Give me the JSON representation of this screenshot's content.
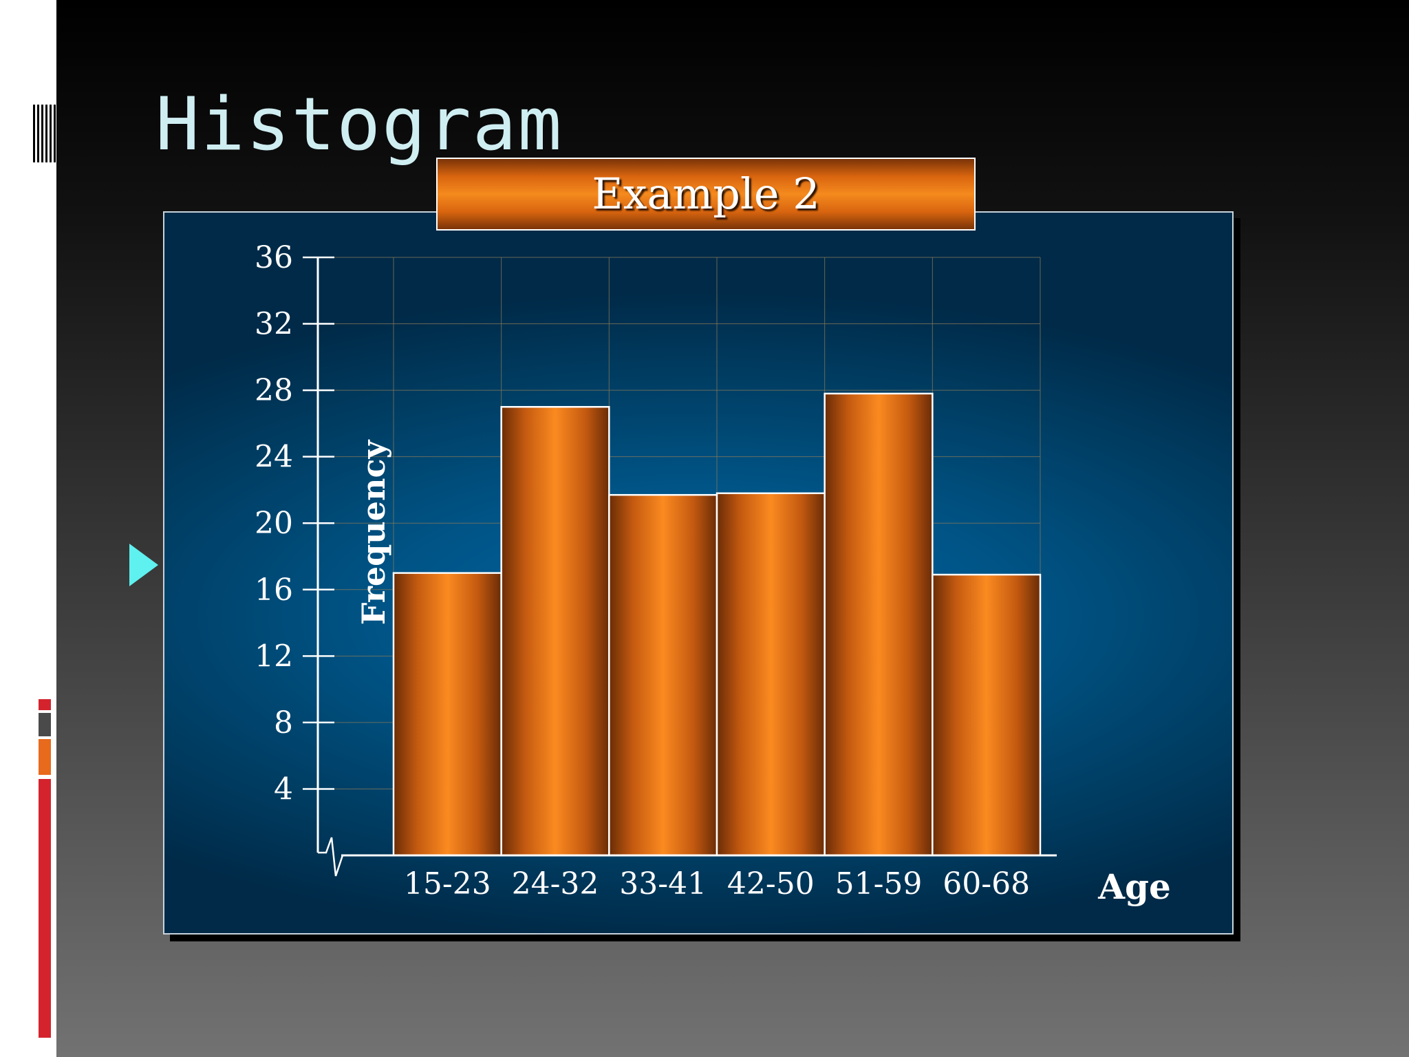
{
  "slide": {
    "title": "Histogram",
    "accent_color": "#5ff0f0"
  },
  "chart_data": {
    "type": "bar",
    "title": "Example 2",
    "xlabel": "Age",
    "ylabel": "Frequency",
    "categories": [
      "15-23",
      "24-32",
      "33-41",
      "42-50",
      "51-59",
      "60-68"
    ],
    "values": [
      17,
      27,
      21.7,
      21.8,
      27.8,
      16.9
    ],
    "yticks": [
      4,
      8,
      12,
      16,
      20,
      24,
      28,
      32,
      36
    ],
    "ylim": [
      0,
      36
    ],
    "grid": true,
    "axis_break": true,
    "bar_color": "#f58a1e",
    "panel_color": "#005486"
  }
}
